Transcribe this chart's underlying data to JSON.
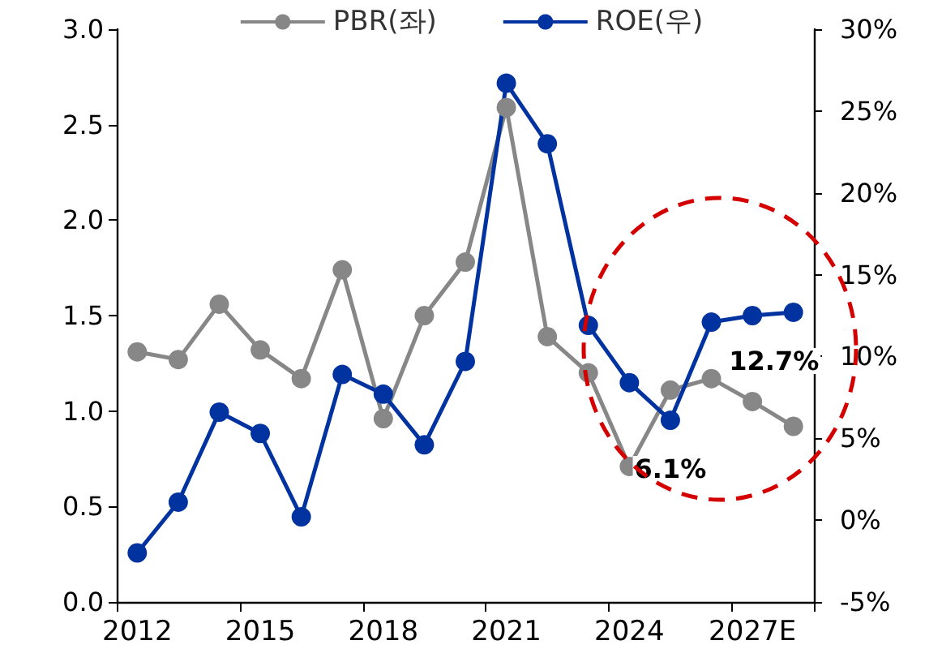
{
  "chart_data": {
    "type": "line",
    "categories": [
      "2012",
      null,
      null,
      "2015",
      null,
      null,
      "2018",
      null,
      null,
      "2021",
      null,
      null,
      "2024",
      null,
      null,
      "2027E",
      null
    ],
    "series": [
      {
        "name": "PBR(좌)",
        "color": "#878787",
        "values": [
          1.31,
          1.27,
          1.56,
          1.32,
          1.17,
          1.74,
          0.96,
          1.5,
          1.78,
          2.59,
          1.39,
          1.2,
          0.71,
          1.11,
          1.17,
          1.05,
          0.92
        ]
      },
      {
        "name": "ROE(우)",
        "color": "#0033a0",
        "axis": "y2",
        "values": [
          -2.0,
          1.1,
          6.6,
          5.3,
          0.2,
          8.9,
          7.7,
          4.6,
          9.7,
          26.7,
          23.0,
          11.9,
          8.4,
          6.1,
          12.1,
          12.5,
          12.7
        ],
        "value_labels": [
          null,
          null,
          null,
          null,
          null,
          null,
          null,
          null,
          null,
          null,
          null,
          null,
          null,
          "6.1%",
          null,
          null,
          "12.7%"
        ]
      }
    ],
    "ylim": [
      0,
      3
    ],
    "yticks": [
      {
        "value": 0,
        "label": "0.0"
      },
      {
        "value": 0.5,
        "label": "0.5"
      },
      {
        "value": 1,
        "label": "1.0"
      },
      {
        "value": 1.5,
        "label": "1.5"
      },
      {
        "value": 2,
        "label": "2.0"
      },
      {
        "value": 2.5,
        "label": "2.5"
      },
      {
        "value": 3,
        "label": "3.0"
      }
    ],
    "y2lim": [
      -5,
      30
    ],
    "y2ticks": [
      {
        "value": -5,
        "label": "-5%"
      },
      {
        "value": 0,
        "label": "0%"
      },
      {
        "value": 5,
        "label": "5%"
      },
      {
        "value": 10,
        "label": "10%"
      },
      {
        "value": 15,
        "label": "15%"
      },
      {
        "value": 20,
        "label": "20%"
      },
      {
        "value": 25,
        "label": "25%"
      },
      {
        "value": 30,
        "label": "30%"
      }
    ],
    "grid": false,
    "legend": "top",
    "marker": "circle",
    "line_style": "solid"
  }
}
